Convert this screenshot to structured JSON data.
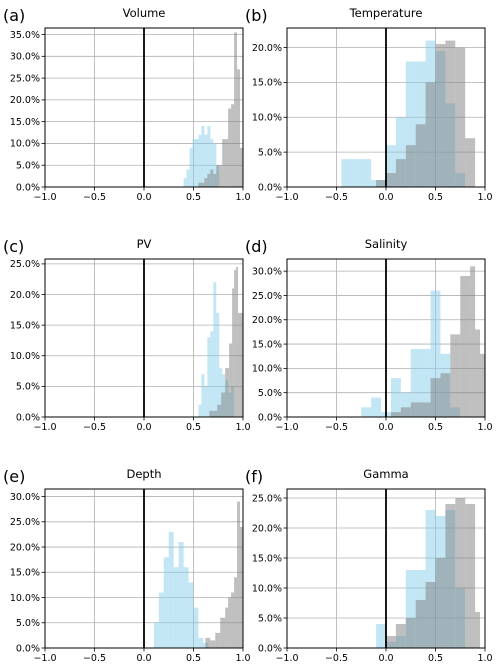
{
  "colors": {
    "blue": "#87ceeb",
    "gray": "#808080",
    "grid": "#b0b0b0",
    "frame": "#000000",
    "zero_line": "#000000"
  },
  "xticks": [
    -1.0,
    -0.5,
    0.0,
    0.5,
    1.0
  ],
  "xtick_labels": [
    "−1.0",
    "−0.5",
    "0.0",
    "0.5",
    "1.0"
  ],
  "chart_data": [
    {
      "type": "bar",
      "label": "(a)",
      "title": "Volume",
      "xlim": [
        -1,
        1
      ],
      "ylim": [
        0,
        36.5
      ],
      "yticks": [
        0,
        5,
        10,
        15,
        20,
        25,
        30,
        35
      ],
      "yticklabels": [
        "0.0%",
        "5.0%",
        "10.0%",
        "15.0%",
        "20.0%",
        "25.0%",
        "30.0%",
        "35.0%"
      ],
      "series": [
        {
          "color": "blue",
          "bins": [
            [
              0.4,
              0.43,
              2
            ],
            [
              0.43,
              0.46,
              4
            ],
            [
              0.46,
              0.49,
              9
            ],
            [
              0.49,
              0.52,
              11
            ],
            [
              0.52,
              0.55,
              11
            ],
            [
              0.55,
              0.58,
              12
            ],
            [
              0.58,
              0.61,
              14
            ],
            [
              0.61,
              0.64,
              12
            ],
            [
              0.64,
              0.67,
              14
            ],
            [
              0.67,
              0.7,
              11
            ],
            [
              0.7,
              0.73,
              10
            ],
            [
              0.73,
              0.76,
              5
            ]
          ]
        },
        {
          "color": "gray",
          "bins": [
            [
              0.55,
              0.58,
              1
            ],
            [
              0.58,
              0.61,
              1
            ],
            [
              0.61,
              0.64,
              2
            ],
            [
              0.64,
              0.67,
              3
            ],
            [
              0.67,
              0.7,
              4
            ],
            [
              0.7,
              0.73,
              3
            ],
            [
              0.73,
              0.76,
              5
            ],
            [
              0.76,
              0.79,
              5
            ],
            [
              0.79,
              0.82,
              11
            ],
            [
              0.82,
              0.85,
              11
            ],
            [
              0.85,
              0.88,
              18
            ],
            [
              0.88,
              0.91,
              19
            ],
            [
              0.91,
              0.94,
              35.5
            ],
            [
              0.94,
              0.97,
              27
            ],
            [
              0.97,
              1.0,
              9
            ]
          ]
        }
      ]
    },
    {
      "type": "bar",
      "label": "(b)",
      "title": "Temperature",
      "xlim": [
        -1,
        1
      ],
      "ylim": [
        0,
        22.8
      ],
      "yticks": [
        0,
        5,
        10,
        15,
        20
      ],
      "yticklabels": [
        "0.0%",
        "5.0%",
        "10.0%",
        "15.0%",
        "20.0%"
      ],
      "series": [
        {
          "color": "blue",
          "bins": [
            [
              -0.45,
              -0.3,
              4
            ],
            [
              -0.3,
              -0.15,
              4
            ],
            [
              -0.15,
              0.0,
              1
            ],
            [
              0.0,
              0.1,
              6
            ],
            [
              0.1,
              0.2,
              10
            ],
            [
              0.2,
              0.3,
              18
            ],
            [
              0.3,
              0.4,
              18
            ],
            [
              0.4,
              0.5,
              21
            ],
            [
              0.5,
              0.6,
              19.5
            ],
            [
              0.6,
              0.7,
              12
            ],
            [
              0.7,
              0.8,
              2
            ]
          ]
        },
        {
          "color": "gray",
          "bins": [
            [
              -0.1,
              0.0,
              1
            ],
            [
              0.0,
              0.1,
              2
            ],
            [
              0.1,
              0.2,
              4
            ],
            [
              0.2,
              0.3,
              6
            ],
            [
              0.3,
              0.4,
              9
            ],
            [
              0.4,
              0.5,
              15
            ],
            [
              0.5,
              0.6,
              20.5
            ],
            [
              0.6,
              0.7,
              21
            ],
            [
              0.7,
              0.8,
              20
            ],
            [
              0.8,
              0.9,
              7
            ]
          ]
        }
      ]
    },
    {
      "type": "bar",
      "label": "(c)",
      "title": "PV",
      "xlim": [
        -1,
        1
      ],
      "ylim": [
        0,
        25.8
      ],
      "yticks": [
        0,
        5,
        10,
        15,
        20,
        25
      ],
      "yticklabels": [
        "0.0%",
        "5.0%",
        "10.0%",
        "15.0%",
        "20.0%",
        "25.0%"
      ],
      "series": [
        {
          "color": "blue",
          "bins": [
            [
              0.55,
              0.58,
              2
            ],
            [
              0.58,
              0.61,
              7
            ],
            [
              0.61,
              0.64,
              5
            ],
            [
              0.64,
              0.67,
              13
            ],
            [
              0.67,
              0.7,
              14
            ],
            [
              0.7,
              0.73,
              22
            ],
            [
              0.73,
              0.76,
              17
            ],
            [
              0.76,
              0.79,
              8
            ],
            [
              0.79,
              0.82,
              7
            ],
            [
              0.82,
              0.85,
              6
            ],
            [
              0.85,
              0.88,
              4
            ],
            [
              0.88,
              0.91,
              5
            ]
          ]
        },
        {
          "color": "gray",
          "bins": [
            [
              0.66,
              0.7,
              1
            ],
            [
              0.7,
              0.74,
              1
            ],
            [
              0.74,
              0.78,
              2
            ],
            [
              0.78,
              0.82,
              4
            ],
            [
              0.82,
              0.86,
              8
            ],
            [
              0.86,
              0.89,
              12
            ],
            [
              0.89,
              0.91,
              21
            ],
            [
              0.91,
              0.93,
              24
            ],
            [
              0.93,
              0.95,
              24.5
            ],
            [
              0.95,
              1.0,
              17
            ]
          ]
        }
      ]
    },
    {
      "type": "bar",
      "label": "(d)",
      "title": "Salinity",
      "xlim": [
        -1,
        1
      ],
      "ylim": [
        0,
        32.5
      ],
      "yticks": [
        0,
        5,
        10,
        15,
        20,
        25,
        30
      ],
      "yticklabels": [
        "0.0%",
        "5.0%",
        "10.0%",
        "15.0%",
        "20.0%",
        "25.0%",
        "30.0%"
      ],
      "series": [
        {
          "color": "blue",
          "bins": [
            [
              -0.25,
              -0.15,
              2
            ],
            [
              -0.15,
              -0.05,
              4
            ],
            [
              -0.05,
              0.05,
              1
            ],
            [
              0.05,
              0.15,
              8
            ],
            [
              0.15,
              0.25,
              5
            ],
            [
              0.25,
              0.45,
              14
            ],
            [
              0.45,
              0.55,
              26
            ],
            [
              0.55,
              0.65,
              13
            ],
            [
              0.65,
              0.75,
              2
            ]
          ]
        },
        {
          "color": "gray",
          "bins": [
            [
              0.05,
              0.15,
              1
            ],
            [
              0.15,
              0.25,
              2
            ],
            [
              0.25,
              0.35,
              3
            ],
            [
              0.35,
              0.45,
              3
            ],
            [
              0.45,
              0.55,
              8
            ],
            [
              0.55,
              0.65,
              9
            ],
            [
              0.65,
              0.75,
              17
            ],
            [
              0.75,
              0.85,
              29
            ],
            [
              0.85,
              0.9,
              31
            ],
            [
              0.9,
              0.95,
              18
            ],
            [
              0.95,
              1.0,
              13
            ]
          ]
        }
      ]
    },
    {
      "type": "bar",
      "label": "(e)",
      "title": "Depth",
      "xlim": [
        -1,
        1
      ],
      "ylim": [
        0,
        31.5
      ],
      "yticks": [
        0,
        5,
        10,
        15,
        20,
        25,
        30
      ],
      "yticklabels": [
        "0.0%",
        "5.0%",
        "10.0%",
        "15.0%",
        "20.0%",
        "25.0%",
        "30.0%"
      ],
      "series": [
        {
          "color": "blue",
          "bins": [
            [
              0.1,
              0.15,
              5
            ],
            [
              0.15,
              0.2,
              11
            ],
            [
              0.2,
              0.25,
              18
            ],
            [
              0.25,
              0.3,
              23
            ],
            [
              0.3,
              0.35,
              16
            ],
            [
              0.35,
              0.4,
              21
            ],
            [
              0.4,
              0.45,
              16
            ],
            [
              0.45,
              0.5,
              13
            ],
            [
              0.5,
              0.55,
              8
            ],
            [
              0.55,
              0.6,
              2
            ],
            [
              0.6,
              0.65,
              1
            ]
          ]
        },
        {
          "color": "gray",
          "bins": [
            [
              0.62,
              0.67,
              2
            ],
            [
              0.67,
              0.72,
              1.5
            ],
            [
              0.72,
              0.77,
              3
            ],
            [
              0.77,
              0.82,
              6
            ],
            [
              0.82,
              0.85,
              8
            ],
            [
              0.85,
              0.88,
              10
            ],
            [
              0.88,
              0.91,
              11
            ],
            [
              0.91,
              0.94,
              14
            ],
            [
              0.94,
              0.97,
              29
            ],
            [
              0.97,
              1.0,
              24
            ]
          ]
        }
      ]
    },
    {
      "type": "bar",
      "label": "(f)",
      "title": "Gamma",
      "xlim": [
        -1,
        1
      ],
      "ylim": [
        0,
        26.5
      ],
      "yticks": [
        0,
        5,
        10,
        15,
        20,
        25
      ],
      "yticklabels": [
        "0.0%",
        "5.0%",
        "10.0%",
        "15.0%",
        "20.0%",
        "25.0%"
      ],
      "series": [
        {
          "color": "blue",
          "bins": [
            [
              -0.1,
              0.0,
              4
            ],
            [
              0.0,
              0.1,
              1
            ],
            [
              0.1,
              0.2,
              2
            ],
            [
              0.2,
              0.3,
              13
            ],
            [
              0.3,
              0.4,
              13
            ],
            [
              0.4,
              0.5,
              23
            ],
            [
              0.5,
              0.6,
              22
            ],
            [
              0.6,
              0.7,
              23
            ],
            [
              0.7,
              0.8,
              10
            ]
          ]
        },
        {
          "color": "gray",
          "bins": [
            [
              0.0,
              0.1,
              2
            ],
            [
              0.1,
              0.2,
              4
            ],
            [
              0.2,
              0.3,
              5
            ],
            [
              0.3,
              0.4,
              8
            ],
            [
              0.4,
              0.5,
              11
            ],
            [
              0.5,
              0.6,
              15
            ],
            [
              0.6,
              0.7,
              24
            ],
            [
              0.7,
              0.8,
              25
            ],
            [
              0.8,
              0.9,
              24
            ],
            [
              0.9,
              0.95,
              6
            ]
          ]
        }
      ]
    }
  ]
}
